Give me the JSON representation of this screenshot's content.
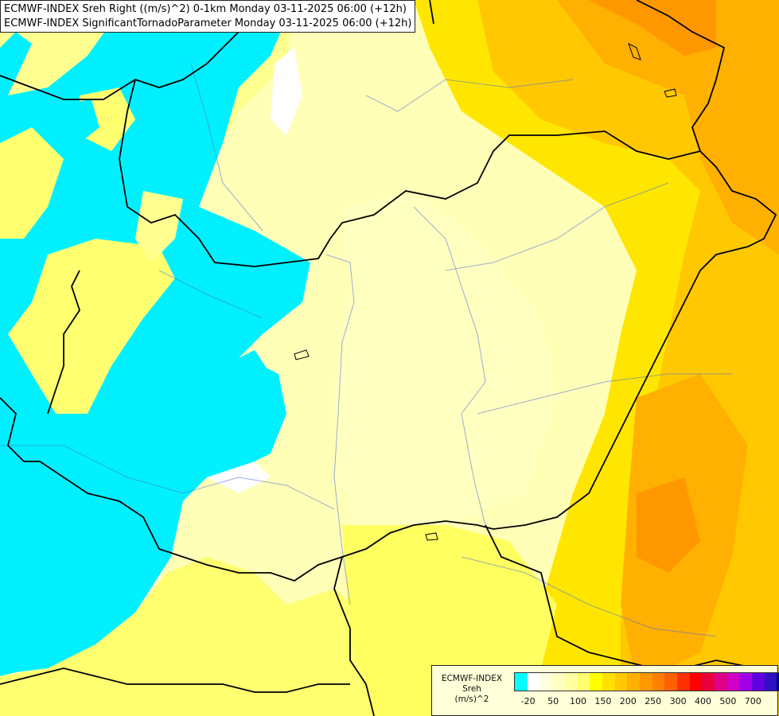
{
  "header": {
    "line1": "ECMWF-INDEX Sreh Right ((m/s)^2) 0-1km Monday 03-11-2025 06:00 (+12h)",
    "line2": "ECMWF-INDEX SignificantTornadoParameter Monday 03-11-2025 06:00 (+12h)"
  },
  "legend": {
    "title_line1": "ECMWF-INDEX",
    "title_line2": "Sreh",
    "title_line3": "(m/s)^2",
    "colors": [
      "#00ffff",
      "#ffffff",
      "#ffffe0",
      "#ffffc0",
      "#ffffa0",
      "#ffff70",
      "#ffff00",
      "#ffe000",
      "#ffc800",
      "#ffb000",
      "#ff9800",
      "#ff8000",
      "#ff6000",
      "#ff3000",
      "#ff0000",
      "#e8003c",
      "#e00088",
      "#d000c8",
      "#a000e8",
      "#6000e0",
      "#3010c0",
      "#000080"
    ],
    "ticks": [
      "-20",
      "50",
      "100",
      "150",
      "200",
      "250",
      "300",
      "400",
      "500",
      "700"
    ]
  }
}
